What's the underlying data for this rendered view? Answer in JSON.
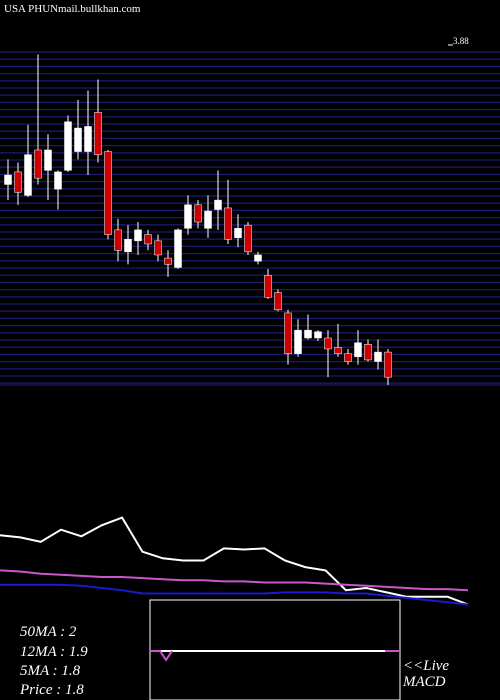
{
  "chart_data": [
    {
      "type": "candlestick",
      "title": "USA PHUN",
      "subtitle": "mail.bullkhan.com",
      "categories": [
        null,
        null,
        null,
        null,
        null,
        null,
        null,
        null,
        null,
        null,
        null,
        null,
        null,
        null,
        null,
        null,
        null,
        null,
        null,
        null,
        null,
        null,
        null,
        null,
        null,
        null,
        null,
        null,
        null,
        null,
        null,
        null,
        null,
        null,
        null,
        null,
        null,
        null,
        null
      ],
      "open": [
        2.99,
        3.07,
        2.92,
        3.21,
        3.08,
        2.96,
        3.08,
        3.2,
        3.2,
        3.45,
        3.2,
        2.7,
        2.56,
        2.63,
        2.67,
        2.63,
        2.52,
        2.46,
        2.71,
        2.86,
        2.71,
        2.83,
        2.84,
        2.65,
        2.73,
        2.5,
        2.41,
        2.3,
        2.17,
        1.91,
        2.01,
        2.01,
        2.01,
        1.95,
        1.91,
        1.89,
        1.97,
        1.86,
        1.92
      ],
      "high": [
        3.15,
        3.13,
        3.37,
        3.82,
        3.31,
        3.08,
        3.43,
        3.53,
        3.59,
        3.66,
        3.21,
        2.77,
        2.73,
        2.75,
        2.7,
        2.67,
        2.57,
        2.71,
        2.92,
        2.89,
        2.92,
        3.08,
        3.02,
        2.8,
        2.75,
        2.56,
        2.45,
        2.32,
        2.19,
        2.13,
        2.16,
        2.06,
        2.06,
        2.1,
        1.94,
        2.06,
        2.0,
        2.0,
        1.94
      ],
      "low": [
        2.89,
        2.86,
        2.91,
        2.99,
        2.89,
        2.83,
        3.07,
        3.15,
        3.05,
        3.13,
        2.64,
        2.5,
        2.48,
        2.54,
        2.57,
        2.5,
        2.4,
        2.45,
        2.67,
        2.71,
        2.65,
        2.7,
        2.61,
        2.59,
        2.54,
        2.48,
        2.26,
        2.18,
        1.84,
        1.89,
        2.0,
        1.99,
        1.76,
        1.89,
        1.84,
        1.84,
        1.86,
        1.81,
        1.71
      ],
      "close": [
        3.05,
        2.94,
        3.18,
        3.03,
        3.21,
        3.07,
        3.39,
        3.35,
        3.36,
        3.18,
        2.67,
        2.57,
        2.64,
        2.7,
        2.61,
        2.54,
        2.48,
        2.7,
        2.86,
        2.75,
        2.82,
        2.89,
        2.64,
        2.71,
        2.56,
        2.54,
        2.27,
        2.19,
        1.91,
        2.06,
        2.06,
        2.05,
        1.94,
        1.91,
        1.86,
        1.98,
        1.87,
        1.92,
        1.76
      ],
      "up_color": "#ffffff",
      "down_color": "#cc0000",
      "grid_color": "#1a1a6e",
      "ylim": [
        1.71,
        3.88
      ],
      "yticks": [
        3.88
      ]
    },
    {
      "type": "line",
      "categories": [
        null,
        null,
        null,
        null,
        null,
        null,
        null,
        null,
        null,
        null,
        null,
        null,
        null,
        null,
        null,
        null,
        null,
        null,
        null,
        null,
        null,
        null,
        null,
        null
      ],
      "series": [
        {
          "name": "Price : 1.8",
          "color": "#ffffff",
          "values": [
            68,
            66,
            62,
            73,
            67,
            77,
            84,
            53,
            47,
            45,
            45,
            56,
            55,
            56,
            45,
            39,
            36,
            18,
            20,
            16,
            12,
            12,
            12,
            5
          ]
        },
        {
          "name": "50MA : 2",
          "color": "#cc55cc",
          "values": [
            36,
            35,
            33,
            32,
            31,
            30,
            30,
            29,
            28,
            27,
            27,
            26,
            26,
            25,
            25,
            25,
            24,
            23,
            22,
            21,
            20,
            19,
            19,
            18
          ]
        },
        {
          "name": "12MA : 1.9",
          "color": "#1a1acc",
          "values": [
            23,
            23,
            23,
            23,
            22,
            20,
            18,
            15,
            15,
            15,
            15,
            15,
            15,
            15,
            16,
            16,
            16,
            15,
            15,
            13,
            11,
            9,
            7,
            5
          ]
        }
      ],
      "labels": [
        "5MA : 1.8"
      ],
      "ylim": [
        0,
        100
      ],
      "notes": [
        "<<Live",
        "MACD"
      ]
    }
  ]
}
